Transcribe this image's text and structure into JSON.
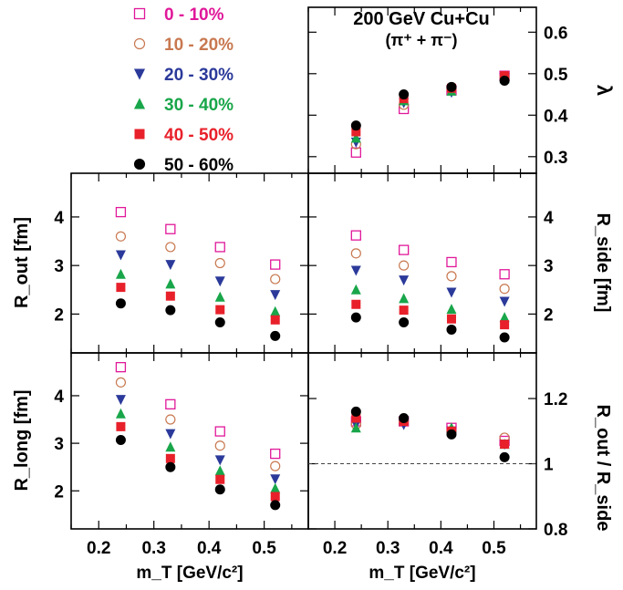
{
  "chart_data": {
    "type": "scatter",
    "title": "200 GeV Cu+Cu",
    "subtitle": "(π⁺ + π⁻)",
    "legend": {
      "placement": "top-left",
      "entries": [
        {
          "label": "0 - 10%",
          "color": "#e0189a",
          "marker": "open-square"
        },
        {
          "label": "10 - 20%",
          "color": "#c87850",
          "marker": "open-circle"
        },
        {
          "label": "20 - 30%",
          "color": "#2b3a9a",
          "marker": "triangle-down"
        },
        {
          "label": "30 - 40%",
          "color": "#19a64a",
          "marker": "triangle-up"
        },
        {
          "label": "40 - 50%",
          "color": "#e8202a",
          "marker": "filled-square"
        },
        {
          "label": "50 - 60%",
          "color": "#000000",
          "marker": "filled-circle"
        }
      ]
    },
    "x": [
      0.24,
      0.33,
      0.42,
      0.52
    ],
    "xlabel": "m_T [GeV/c²]",
    "xlim": [
      0.15,
      0.58
    ],
    "xticks": [
      "0.2",
      "0.3",
      "0.4",
      "0.5"
    ],
    "panels": [
      {
        "id": "lambda",
        "ylabel": "λ",
        "ylim": [
          0.26,
          0.66
        ],
        "yticks": [
          "0.3",
          "0.4",
          "0.5",
          "0.6"
        ],
        "ytick_side": "right",
        "series": [
          {
            "name": "0 - 10%",
            "values": [
              0.31,
              0.415,
              0.46,
              0.495
            ]
          },
          {
            "name": "10 - 20%",
            "values": [
              0.33,
              0.425,
              0.463,
              0.492
            ]
          },
          {
            "name": "20 - 30%",
            "values": [
              0.335,
              0.43,
              0.455,
              0.49
            ]
          },
          {
            "name": "30 - 40%",
            "values": [
              0.345,
              0.435,
              0.458,
              0.488
            ]
          },
          {
            "name": "40 - 50%",
            "values": [
              0.36,
              0.44,
              0.465,
              0.495
            ]
          },
          {
            "name": "50 - 60%",
            "values": [
              0.375,
              0.45,
              0.468,
              0.483
            ]
          }
        ]
      },
      {
        "id": "rout",
        "ylabel": "R_out [fm]",
        "ylim": [
          1.2,
          4.9
        ],
        "yticks": [
          "2",
          "3",
          "4"
        ],
        "ytick_side": "left",
        "series": [
          {
            "name": "0 - 10%",
            "values": [
              4.1,
              3.75,
              3.38,
              3.02
            ]
          },
          {
            "name": "10 - 20%",
            "values": [
              3.6,
              3.38,
              3.05,
              2.72
            ]
          },
          {
            "name": "20 - 30%",
            "values": [
              3.22,
              3.02,
              2.68,
              2.4
            ]
          },
          {
            "name": "30 - 40%",
            "values": [
              2.82,
              2.62,
              2.35,
              2.05
            ]
          },
          {
            "name": "40 - 50%",
            "values": [
              2.55,
              2.37,
              2.09,
              1.88
            ]
          },
          {
            "name": "50 - 60%",
            "values": [
              2.22,
              2.08,
              1.83,
              1.55
            ]
          }
        ]
      },
      {
        "id": "rside",
        "ylabel": "R_side [fm]",
        "ylim": [
          1.2,
          4.9
        ],
        "yticks": [
          "2",
          "3",
          "4"
        ],
        "ytick_side": "right",
        "series": [
          {
            "name": "0 - 10%",
            "values": [
              3.62,
              3.32,
              3.07,
              2.82
            ]
          },
          {
            "name": "10 - 20%",
            "values": [
              3.25,
              3.0,
              2.78,
              2.52
            ]
          },
          {
            "name": "20 - 30%",
            "values": [
              2.9,
              2.7,
              2.45,
              2.26
            ]
          },
          {
            "name": "30 - 40%",
            "values": [
              2.5,
              2.32,
              2.1,
              1.93
            ]
          },
          {
            "name": "40 - 50%",
            "values": [
              2.2,
              2.08,
              1.9,
              1.78
            ]
          },
          {
            "name": "50 - 60%",
            "values": [
              1.93,
              1.83,
              1.68,
              1.52
            ]
          }
        ]
      },
      {
        "id": "rlong",
        "ylabel": "R_long [fm]",
        "ylim": [
          1.2,
          4.9
        ],
        "yticks": [
          "2",
          "3",
          "4"
        ],
        "ytick_side": "left",
        "series": [
          {
            "name": "0 - 10%",
            "values": [
              4.6,
              3.82,
              3.25,
              2.78
            ]
          },
          {
            "name": "10 - 20%",
            "values": [
              4.28,
              3.5,
              2.95,
              2.52
            ]
          },
          {
            "name": "20 - 30%",
            "values": [
              3.92,
              3.2,
              2.65,
              2.25
            ]
          },
          {
            "name": "30 - 40%",
            "values": [
              3.62,
              2.92,
              2.42,
              2.05
            ]
          },
          {
            "name": "40 - 50%",
            "values": [
              3.35,
              2.68,
              2.24,
              1.88
            ]
          },
          {
            "name": "50 - 60%",
            "values": [
              3.07,
              2.5,
              2.03,
              1.7
            ]
          }
        ]
      },
      {
        "id": "ratio",
        "ylabel": "R_out / R_side",
        "ylim": [
          0.8,
          1.34
        ],
        "yticks": [
          "0.8",
          "1",
          "1.2"
        ],
        "ytick_side": "right",
        "reference_line": 1.0,
        "series": [
          {
            "name": "0 - 10%",
            "values": [
              1.13,
              1.13,
              1.11,
              1.07
            ]
          },
          {
            "name": "10 - 20%",
            "values": [
              1.12,
              1.13,
              1.1,
              1.08
            ]
          },
          {
            "name": "20 - 30%",
            "values": [
              1.12,
              1.12,
              1.1,
              1.06
            ]
          },
          {
            "name": "30 - 40%",
            "values": [
              1.11,
              1.13,
              1.11,
              1.06
            ]
          },
          {
            "name": "40 - 50%",
            "values": [
              1.14,
              1.13,
              1.1,
              1.06
            ]
          },
          {
            "name": "50 - 60%",
            "values": [
              1.16,
              1.14,
              1.09,
              1.02
            ]
          }
        ]
      }
    ]
  }
}
